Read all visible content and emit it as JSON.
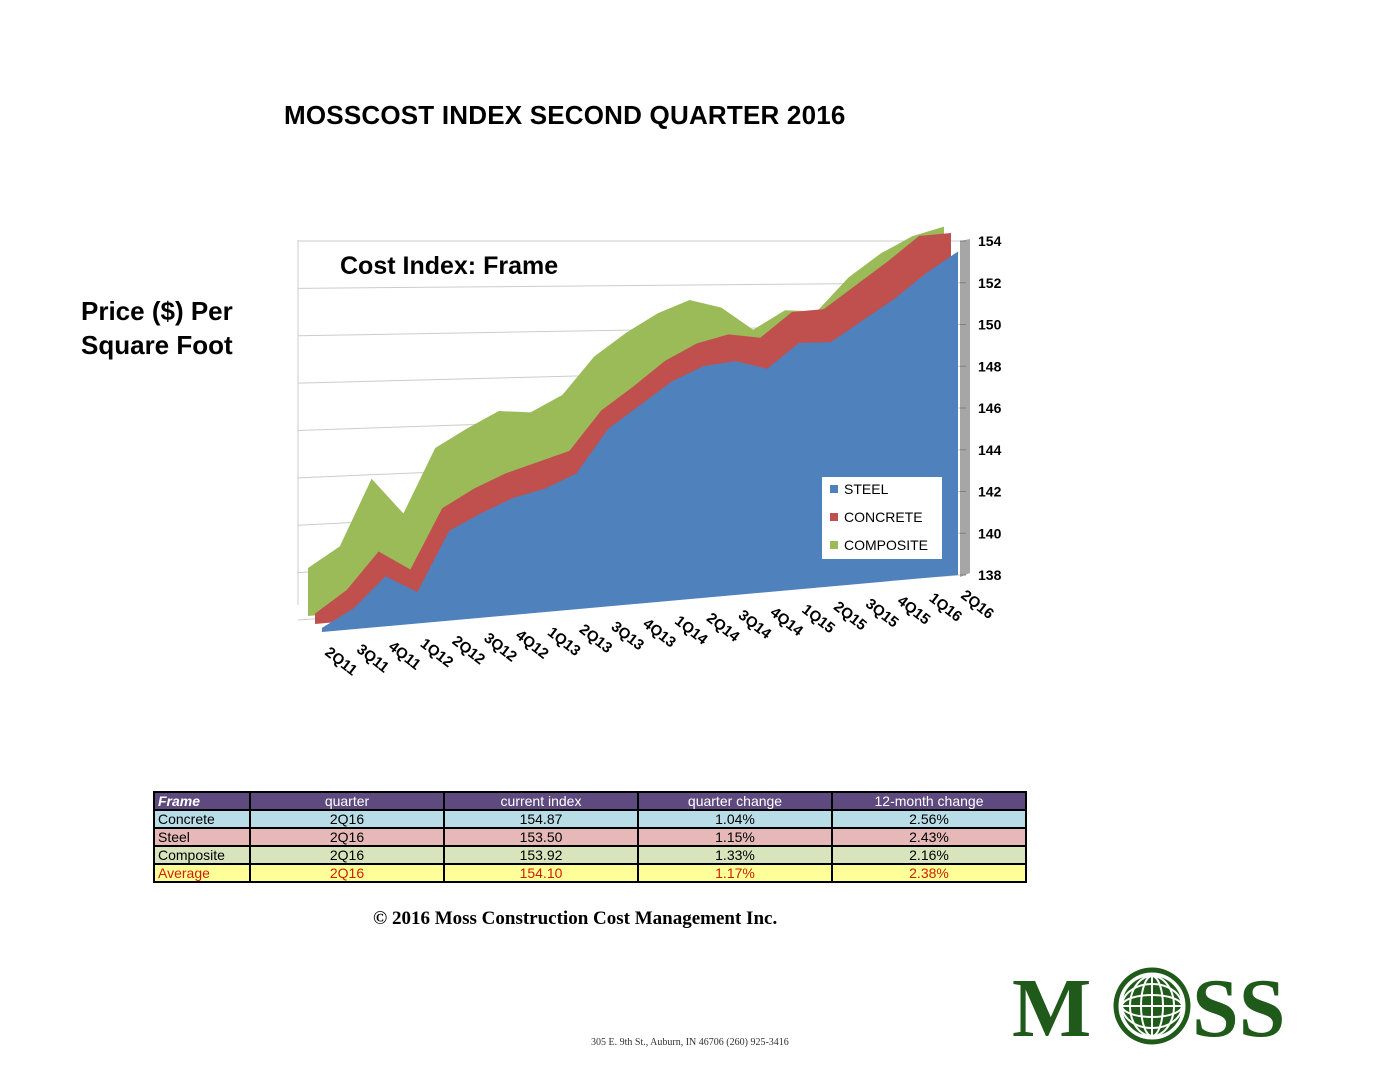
{
  "page_title": "MOSSCOST INDEX SECOND QUARTER 2016",
  "y_axis_label_line1": "Price ($) Per",
  "y_axis_label_line2": "Square Foot",
  "chart_data": {
    "type": "area",
    "title": "Cost Index: Frame",
    "xlabel": "",
    "ylabel": "Price ($) Per Square Foot",
    "categories": [
      "2Q11",
      "3Q11",
      "4Q11",
      "1Q12",
      "2Q12",
      "3Q12",
      "4Q12",
      "1Q13",
      "2Q13",
      "3Q13",
      "4Q13",
      "1Q14",
      "2Q14",
      "3Q14",
      "4Q14",
      "1Q15",
      "2Q15",
      "3Q15",
      "4Q15",
      "1Q16",
      "2Q16"
    ],
    "ylim": [
      138,
      154
    ],
    "yticks": [
      138,
      140,
      142,
      144,
      146,
      148,
      150,
      152,
      154
    ],
    "grid": true,
    "legend_position": "bottom-right",
    "series": [
      {
        "name": "COMPOSITE",
        "color": "#9bbb59",
        "values": [
          140.3,
          141.2,
          144.3,
          142.5,
          145.5,
          146.3,
          147.0,
          146.8,
          147.5,
          149.2,
          150.2,
          151.0,
          151.5,
          151.0,
          149.8,
          150.6,
          150.4,
          151.9,
          152.9,
          153.6,
          153.92
        ]
      },
      {
        "name": "CONCRETE",
        "color": "#c0504d",
        "values": [
          138.5,
          139.5,
          141.2,
          140.2,
          143.0,
          143.8,
          144.4,
          144.8,
          145.2,
          147.0,
          148.0,
          149.1,
          149.8,
          150.1,
          149.8,
          150.9,
          150.9,
          151.9,
          152.9,
          154.2,
          154.87
        ]
      },
      {
        "name": "STEEL",
        "color": "#4f81bd",
        "values": [
          138.2,
          139.0,
          140.4,
          139.5,
          142.3,
          143.0,
          143.6,
          143.9,
          144.5,
          146.5,
          147.5,
          148.5,
          149.1,
          149.2,
          148.7,
          149.8,
          149.7,
          150.6,
          151.5,
          152.6,
          153.5
        ]
      }
    ]
  },
  "table": {
    "headers": [
      "Frame",
      "quarter",
      "current index",
      "quarter change",
      "12-month change"
    ],
    "rows": [
      {
        "label": "Concrete",
        "quarter": "2Q16",
        "index": "154.87",
        "qchange": "1.04%",
        "ychange": "2.56%"
      },
      {
        "label": "Steel",
        "quarter": "2Q16",
        "index": "153.50",
        "qchange": "1.15%",
        "ychange": "2.43%"
      },
      {
        "label": "Composite",
        "quarter": "2Q16",
        "index": "153.92",
        "qchange": "1.33%",
        "ychange": "2.16%"
      },
      {
        "label": "Average",
        "quarter": "2Q16",
        "index": "154.10",
        "qchange": "1.17%",
        "ychange": "2.38%"
      }
    ]
  },
  "copyright": "© 2016 Moss Construction Cost Management Inc.",
  "address": "305 E. 9th St., Auburn, IN 46706 (260) 925-3416",
  "logo": {
    "text_left": "M",
    "text_right": "SS",
    "color": "#1f5a1a",
    "icon": "globe-icon"
  }
}
